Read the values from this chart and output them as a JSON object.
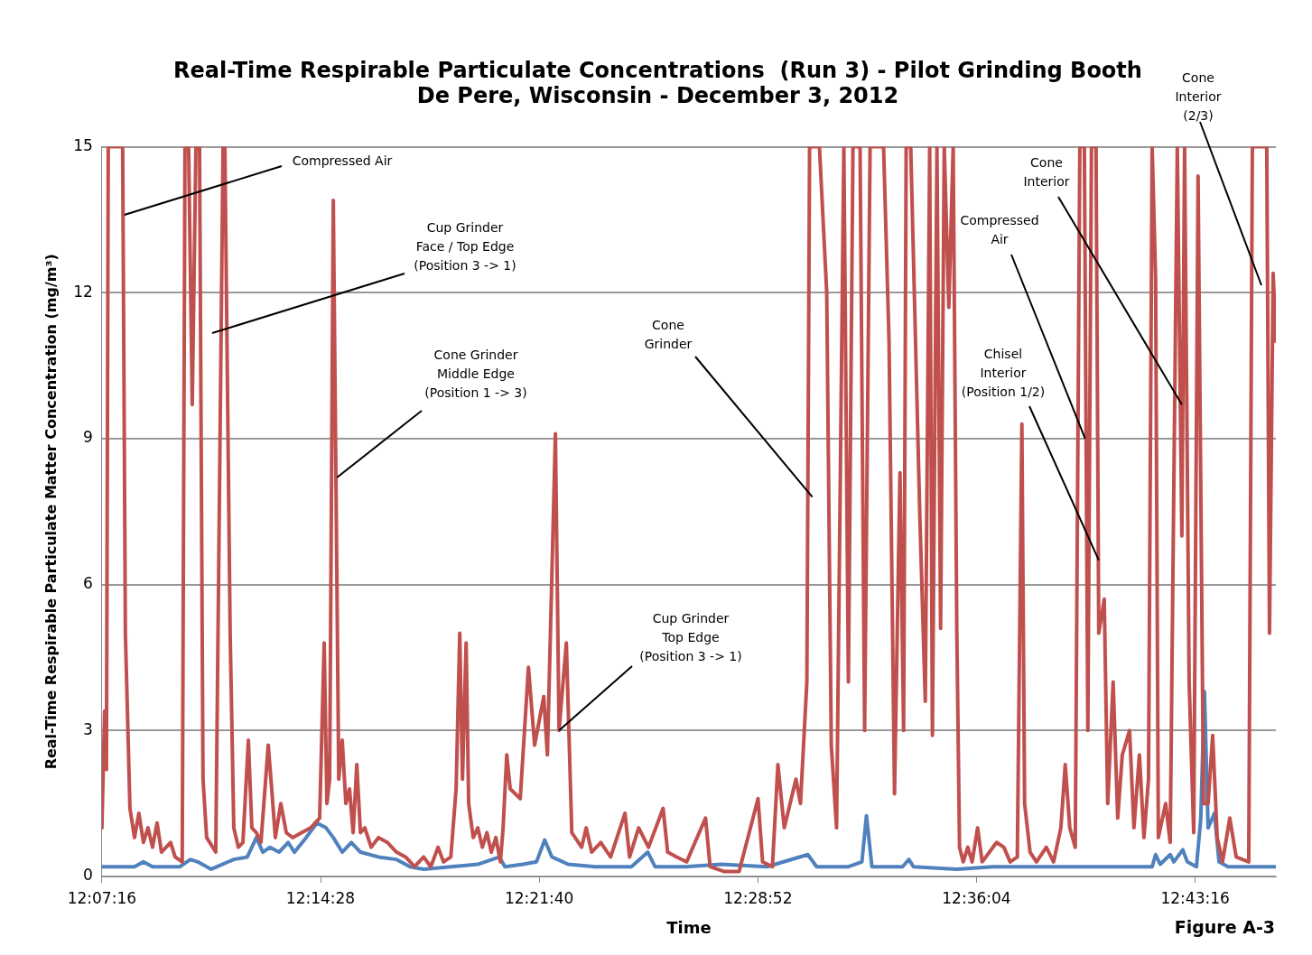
{
  "chart_data": {
    "type": "line",
    "title": "Real-Time Respirable Particulate Concentrations  (Run 3) - Pilot Grinding Booth\nDe Pere, Wisconsin - December 3, 2012",
    "xlabel": "Time",
    "ylabel": "Real-Time Respirable Particulate Matter Concentration (mg/m³)",
    "xlim": [
      12.1211,
      12.7654
    ],
    "xticks": [
      {
        "value": 12.12111,
        "label": "12:07:16"
      },
      {
        "value": 12.24111,
        "label": "12:14:28"
      },
      {
        "value": 12.36111,
        "label": "12:21:40"
      },
      {
        "value": 12.48111,
        "label": "12:28:52"
      },
      {
        "value": 12.60111,
        "label": "12:36:04"
      },
      {
        "value": 12.72111,
        "label": "12:43:16"
      }
    ],
    "ylim": [
      0,
      15
    ],
    "yticks": [
      0,
      3,
      6,
      9,
      12,
      15
    ],
    "grid": "y",
    "marker": "none",
    "line_style": "solid",
    "series": [
      {
        "color": "#c0504d",
        "x": [
          12.1211,
          12.1226,
          12.1236,
          12.1246,
          12.1325,
          12.134,
          12.1365,
          12.139,
          12.1414,
          12.1439,
          12.1464,
          12.1489,
          12.1514,
          12.1538,
          12.1588,
          12.1613,
          12.1652,
          12.1667,
          12.1687,
          12.1707,
          12.1727,
          12.1747,
          12.1766,
          12.1786,
          12.1836,
          12.1876,
          12.1886,
          12.1915,
          12.1935,
          12.196,
          12.1985,
          12.2015,
          12.2034,
          12.2059,
          12.2084,
          12.2124,
          12.2143,
          12.2163,
          12.2193,
          12.2223,
          12.2258,
          12.2307,
          12.2357,
          12.2406,
          12.2431,
          12.2446,
          12.2461,
          12.2481,
          12.2496,
          12.2511,
          12.253,
          12.255,
          12.257,
          12.259,
          12.261,
          12.263,
          12.2654,
          12.2689,
          12.2729,
          12.2778,
          12.2828,
          12.2878,
          12.2927,
          12.2977,
          12.3016,
          12.3056,
          12.3086,
          12.3126,
          12.3155,
          12.3175,
          12.319,
          12.321,
          12.3224,
          12.3249,
          12.3274,
          12.3299,
          12.3324,
          12.3348,
          12.3373,
          12.3398,
          12.3413,
          12.3433,
          12.3452,
          12.3507,
          12.3552,
          12.3586,
          12.3636,
          12.3656,
          12.37,
          12.372,
          12.376,
          12.379,
          12.3844,
          12.3869,
          12.3899,
          12.3949,
          12.4003,
          12.4082,
          12.4107,
          12.4157,
          12.4211,
          12.4291,
          12.4316,
          12.4366,
          12.442,
          12.4524,
          12.4549,
          12.4628,
          12.4708,
          12.4812,
          12.4837,
          12.4891,
          12.4921,
          12.4956,
          12.502,
          12.5045,
          12.508,
          12.5095,
          12.5124,
          12.5149,
          12.5189,
          12.5214,
          12.5243,
          12.5283,
          12.5308,
          12.5333,
          12.5372,
          12.5397,
          12.5427,
          12.5501,
          12.5531,
          12.5561,
          12.5591,
          12.5611,
          12.5625,
          12.565,
          12.57,
          12.573,
          12.5754,
          12.5769,
          12.5794,
          12.5814,
          12.5834,
          12.5859,
          12.5883,
          12.5903,
          12.5918,
          12.5938,
          12.5963,
          12.5987,
          12.6017,
          12.6042,
          12.6082,
          12.6121,
          12.6161,
          12.6196,
          12.6235,
          12.626,
          12.6275,
          12.6305,
          12.634,
          12.6394,
          12.6434,
          12.6474,
          12.6498,
          12.6523,
          12.6553,
          12.6578,
          12.6603,
          12.6622,
          12.6642,
          12.6667,
          12.6682,
          12.6712,
          12.6731,
          12.6761,
          12.6786,
          12.6811,
          12.6851,
          12.6875,
          12.6905,
          12.693,
          12.6955,
          12.6975,
          12.6994,
          12.7009,
          12.7049,
          12.7074,
          12.7113,
          12.7138,
          12.7153,
          12.7178,
          12.7203,
          12.7227,
          12.7257,
          12.7282,
          12.7307,
          12.7332,
          12.7361,
          12.7401,
          12.7436,
          12.7505,
          12.7525,
          12.7604,
          12.7619,
          12.7639,
          12.7654
        ],
        "values": [
          1.0,
          3.4,
          2.2,
          15,
          15,
          5,
          1.4,
          0.8,
          1.3,
          0.7,
          1.0,
          0.6,
          1.1,
          0.5,
          0.7,
          0.4,
          0.3,
          15,
          15,
          9.7,
          15,
          15,
          2,
          0.8,
          0.5,
          15,
          15,
          5,
          1,
          0.6,
          0.7,
          2.8,
          1.0,
          0.9,
          0.7,
          2.7,
          1.8,
          0.8,
          1.5,
          0.9,
          0.8,
          0.9,
          1.0,
          1.2,
          4.8,
          1.5,
          2.0,
          13.9,
          8.0,
          2.0,
          2.8,
          1.5,
          1.8,
          0.9,
          2.3,
          0.9,
          1.0,
          0.6,
          0.8,
          0.7,
          0.5,
          0.4,
          0.2,
          0.4,
          0.2,
          0.6,
          0.3,
          0.4,
          1.8,
          5.0,
          2.0,
          4.8,
          1.5,
          0.8,
          1.0,
          0.6,
          0.9,
          0.5,
          0.8,
          0.3,
          1.0,
          2.5,
          1.8,
          1.6,
          4.3,
          2.7,
          3.7,
          2.5,
          9.1,
          3.0,
          4.8,
          0.9,
          0.6,
          1.0,
          0.5,
          0.7,
          0.4,
          1.3,
          0.4,
          1.0,
          0.6,
          1.4,
          0.5,
          0.4,
          0.3,
          1.2,
          0.2,
          0.1,
          0.1,
          1.6,
          0.3,
          0.2,
          2.3,
          1.0,
          2.0,
          1.5,
          4.0,
          15,
          15,
          15,
          12,
          2.7,
          1.0,
          15,
          4.0,
          15,
          15,
          3.0,
          15,
          15,
          11,
          1.7,
          8.3,
          3.0,
          15,
          15,
          7.4,
          3.6,
          15,
          2.9,
          15,
          5.1,
          15,
          11.7,
          15,
          5,
          0.6,
          0.3,
          0.6,
          0.3,
          1.0,
          0.3,
          0.5,
          0.7,
          0.6,
          0.3,
          0.4,
          9.3,
          1.5,
          0.5,
          0.3,
          0.6,
          0.3,
          1.0,
          2.3,
          1.0,
          0.6,
          15,
          15,
          3.0,
          15,
          15,
          5.0,
          5.7,
          1.5,
          4.0,
          1.2,
          2.5,
          3.0,
          1.0,
          2.5,
          0.8,
          2.0,
          15,
          12.3,
          0.8,
          1.5,
          0.7,
          15,
          7.0,
          15,
          4.0,
          0.9,
          14.4,
          1.5,
          1.5,
          2.9,
          0.8,
          0.3,
          1.2,
          0.4,
          0.3,
          15,
          15,
          5.0,
          12.4,
          11
        ]
      },
      {
        "color": "#4f81bd",
        "x": [
          12.1211,
          12.139,
          12.1439,
          12.1489,
          12.1638,
          12.1697,
          12.1737,
          12.1811,
          12.1935,
          12.2009,
          12.2059,
          12.2094,
          12.2134,
          12.2183,
          12.2233,
          12.2268,
          12.2332,
          12.2391,
          12.2441,
          12.2481,
          12.253,
          12.258,
          12.263,
          12.2729,
          12.2828,
          12.2902,
          12.2977,
          12.3126,
          12.3274,
          12.3393,
          12.3423,
          12.3522,
          12.3596,
          12.3641,
          12.3681,
          12.377,
          12.3919,
          12.4117,
          12.4207,
          12.4247,
          12.4415,
          12.4613,
          12.4861,
          12.5085,
          12.5134,
          12.5308,
          12.5382,
          12.5407,
          12.5437,
          12.5605,
          12.564,
          12.5665,
          12.5903,
          12.6101,
          12.6349,
          12.6597,
          12.6845,
          12.6975,
          12.6994,
          12.7019,
          12.7074,
          12.7094,
          12.7143,
          12.7168,
          12.7218,
          12.7242,
          12.7262,
          12.7282,
          12.7317,
          12.7342,
          12.7391,
          12.7654
        ],
        "values": [
          0.2,
          0.2,
          0.3,
          0.2,
          0.2,
          0.35,
          0.3,
          0.15,
          0.35,
          0.4,
          0.8,
          0.5,
          0.6,
          0.5,
          0.7,
          0.5,
          0.8,
          1.1,
          1.0,
          0.8,
          0.5,
          0.7,
          0.5,
          0.4,
          0.35,
          0.2,
          0.15,
          0.2,
          0.25,
          0.4,
          0.2,
          0.25,
          0.3,
          0.75,
          0.4,
          0.25,
          0.2,
          0.2,
          0.5,
          0.2,
          0.2,
          0.25,
          0.2,
          0.45,
          0.2,
          0.2,
          0.3,
          1.25,
          0.2,
          0.2,
          0.35,
          0.2,
          0.15,
          0.2,
          0.2,
          0.2,
          0.2,
          0.2,
          0.45,
          0.25,
          0.45,
          0.3,
          0.55,
          0.3,
          0.2,
          1.2,
          3.8,
          1.0,
          1.3,
          0.3,
          0.2,
          0.2
        ]
      }
    ],
    "annotations": [
      {
        "text": "Compressed Air",
        "x": 12.1335,
        "y": 13.6
      },
      "Cup Grinder\nFace / Top Edge\n(Position 3 -> 1)",
      {
        "text": "Cone Grinder\nMiddle Edge\n(Position 1 -> 3)",
        "x": 12.2501,
        "y": 8.2
      },
      {
        "text": "Cup Grinder\nTop Edge\n(Position 3 -> 1)",
        "x": 12.372,
        "y": 3.0
      },
      {
        "text": "Cone\nGrinder",
        "x": 12.511,
        "y": 7.8
      },
      {
        "text": "Chisel\nInterior\n(Position 1/2)",
        "x": 12.6682,
        "y": 6.5
      },
      {
        "text": "Compressed\nAir",
        "x": 12.6607,
        "y": 9.0
      },
      {
        "text": "Cone\nInterior",
        "x": 12.7138,
        "y": 9.7
      },
      "Cone\nInterior\n(2/3)",
      "Figure A-3"
    ]
  }
}
